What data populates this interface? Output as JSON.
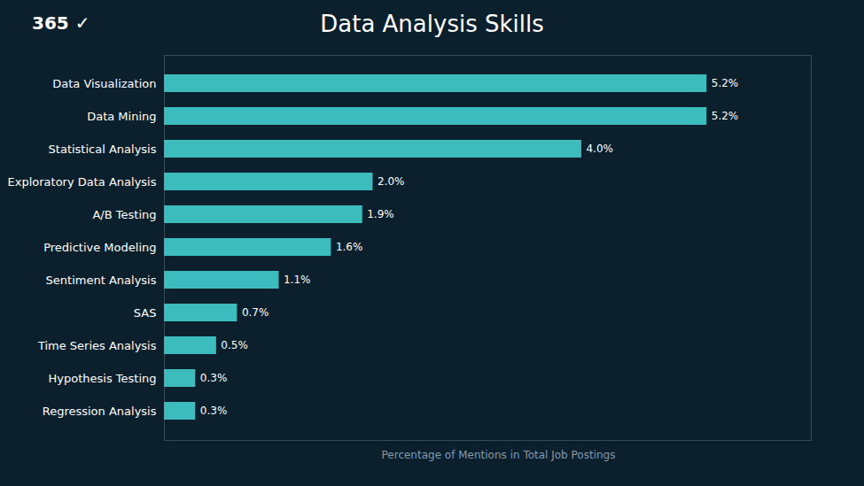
{
  "chart_data": {
    "type": "bar",
    "orientation": "horizontal",
    "title": "Data Analysis Skills",
    "xlabel": "Percentage of Mentions in Total Job Postings",
    "categories": [
      "Data Visualization",
      "Data Mining",
      "Statistical Analysis",
      "Exploratory Data Analysis",
      "A/B Testing",
      "Predictive Modeling",
      "Sentiment Analysis",
      "SAS",
      "Time Series Analysis",
      "Hypothesis Testing",
      "Regression Analysis"
    ],
    "values": [
      5.2,
      5.2,
      4.0,
      2.0,
      1.9,
      1.6,
      1.1,
      0.7,
      0.5,
      0.3,
      0.3
    ],
    "value_labels": [
      "5.2%",
      "5.2%",
      "4.0%",
      "2.0%",
      "1.9%",
      "1.6%",
      "1.1%",
      "0.7%",
      "0.5%",
      "0.3%",
      "0.3%"
    ],
    "data_labels": true,
    "color": "#3cbcbc",
    "xlim": [
      0,
      6.2
    ],
    "tick_labels": "y",
    "annotations": [
      "365",
      "✓"
    ]
  }
}
